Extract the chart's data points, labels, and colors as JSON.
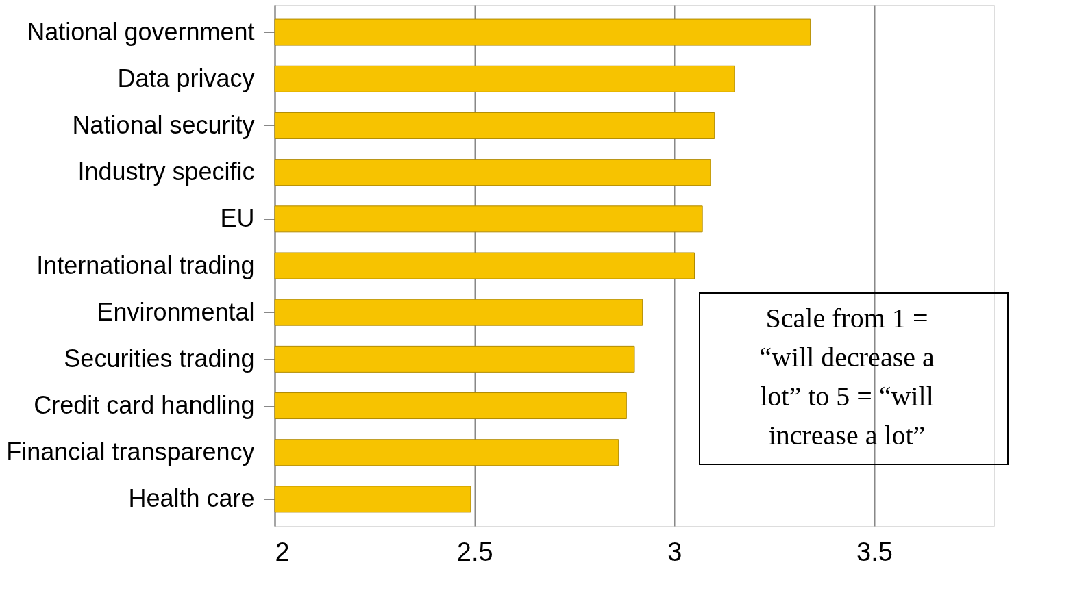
{
  "chart_data": {
    "type": "bar",
    "orientation": "horizontal",
    "categories": [
      "National government",
      "Data privacy",
      "National security",
      "Industry specific",
      "EU",
      "International trading",
      "Environmental",
      "Securities trading",
      "Credit card handling",
      "Financial transparency",
      "Health care"
    ],
    "values": [
      3.34,
      3.15,
      3.1,
      3.09,
      3.07,
      3.05,
      2.92,
      2.9,
      2.88,
      2.86,
      2.49
    ],
    "color": "#f7c300",
    "xlim": [
      2,
      3.8
    ],
    "xticks": [
      2,
      2.5,
      3,
      3.5
    ],
    "grid": "x",
    "annotations": [
      "Scale from 1 =\n“will decrease a\nlot” to 5 = “will\nincrease a lot”"
    ]
  }
}
